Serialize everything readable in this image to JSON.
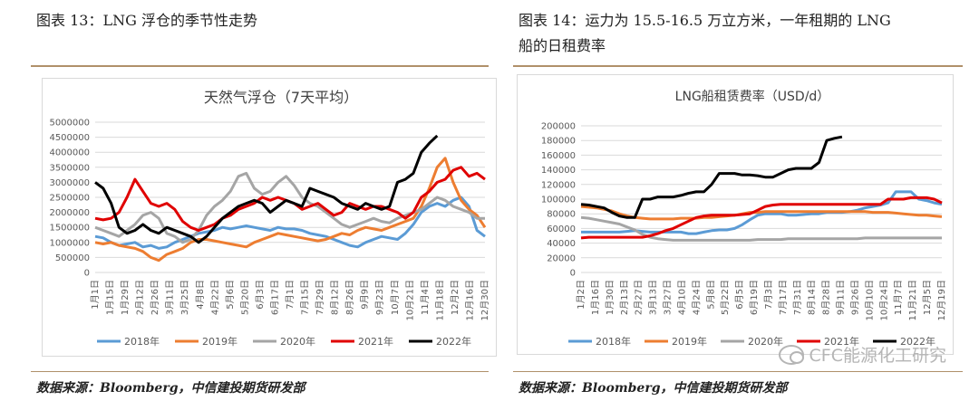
{
  "left_panel": {
    "caption": "图表 13：LNG 浮仓的季节性走势",
    "source": "数据来源：Bloomberg，中信建投期货研发部"
  },
  "right_panel": {
    "caption_line1": "图表  14：运力为 15.5-16.5 万立方米，一年租期的 LNG",
    "caption_line2": "船的日租费率",
    "source": "数据来源：Bloomberg，中信建投期货研发部"
  },
  "watermark": "CFC能源化工研究",
  "colors": {
    "2018": "#5b9bd5",
    "2019": "#ed7d31",
    "2020": "#a5a5a5",
    "2021": "#e00000",
    "2022": "#000000"
  },
  "chart_data": [
    {
      "type": "line",
      "title": "天然气浮仓（7天平均）",
      "ylim": [
        0,
        5000000
      ],
      "yticks": [
        "0",
        "500000",
        "1000000",
        "1500000",
        "2000000",
        "2500000",
        "3000000",
        "3500000",
        "4000000",
        "4500000",
        "5000000"
      ],
      "x_tick_labels": [
        "1月1日",
        "1月15日",
        "1月29日",
        "2月12日",
        "2月26日",
        "3月11日",
        "3月25日",
        "4月8日",
        "4月22日",
        "5月6日",
        "5月20日",
        "6月3日",
        "6月17日",
        "7月1日",
        "7月15日",
        "7月29日",
        "8月12日",
        "8月26日",
        "9月9日",
        "9月23日",
        "10月7日",
        "10月21日",
        "11月4日",
        "11月18日",
        "12月2日",
        "12月16日",
        "12月30日"
      ],
      "grid": true,
      "legend": "bottom",
      "series": [
        {
          "name": "2018年",
          "values": [
            1200000,
            1150000,
            1000000,
            900000,
            950000,
            1000000,
            850000,
            900000,
            800000,
            850000,
            1000000,
            1100000,
            1200000,
            1300000,
            1350000,
            1400000,
            1500000,
            1450000,
            1500000,
            1550000,
            1500000,
            1450000,
            1400000,
            1500000,
            1450000,
            1450000,
            1400000,
            1300000,
            1250000,
            1200000,
            1100000,
            1000000,
            900000,
            850000,
            1000000,
            1100000,
            1200000,
            1150000,
            1100000,
            1300000,
            1600000,
            2000000,
            2200000,
            2300000,
            2200000,
            2400000,
            2500000,
            2200000,
            1400000,
            1200000
          ]
        },
        {
          "name": "2019年",
          "values": [
            1000000,
            950000,
            1000000,
            900000,
            850000,
            800000,
            700000,
            500000,
            400000,
            600000,
            700000,
            800000,
            1000000,
            1100000,
            1100000,
            1050000,
            1000000,
            950000,
            900000,
            850000,
            1000000,
            1100000,
            1200000,
            1300000,
            1250000,
            1200000,
            1150000,
            1100000,
            1050000,
            1100000,
            1200000,
            1300000,
            1250000,
            1400000,
            1500000,
            1450000,
            1400000,
            1500000,
            1600000,
            1700000,
            1800000,
            2200000,
            2800000,
            3500000,
            3800000,
            3000000,
            2400000,
            2100000,
            1900000,
            1500000
          ]
        },
        {
          "name": "2020年",
          "values": [
            1500000,
            1400000,
            1300000,
            1200000,
            1400000,
            1600000,
            1900000,
            2000000,
            1800000,
            1300000,
            1200000,
            1000000,
            1100000,
            1400000,
            1900000,
            2200000,
            2400000,
            2700000,
            3200000,
            3300000,
            2800000,
            2600000,
            2700000,
            3000000,
            3200000,
            2900000,
            2500000,
            2300000,
            2200000,
            2000000,
            1800000,
            1600000,
            1500000,
            1600000,
            1700000,
            1800000,
            1700000,
            1650000,
            1800000,
            1900000,
            2000000,
            2100000,
            2300000,
            2500000,
            2400000,
            2200000,
            2100000,
            2000000,
            1800000,
            1800000
          ]
        },
        {
          "name": "2021年",
          "values": [
            1800000,
            1750000,
            1800000,
            2000000,
            2500000,
            3100000,
            2700000,
            2300000,
            2200000,
            2300000,
            2100000,
            1700000,
            1500000,
            1400000,
            1500000,
            1600000,
            1800000,
            1900000,
            2100000,
            2200000,
            2300000,
            2500000,
            2400000,
            2500000,
            2400000,
            2300000,
            2100000,
            2200000,
            2300000,
            2100000,
            1900000,
            2000000,
            2300000,
            2200000,
            2100000,
            2200000,
            2200000,
            2100000,
            2000000,
            1800000,
            2000000,
            2500000,
            2700000,
            3000000,
            3100000,
            3400000,
            3500000,
            3200000,
            3300000,
            3100000
          ]
        },
        {
          "name": "2022年",
          "values": [
            3000000,
            2800000,
            2300000,
            1500000,
            1300000,
            1400000,
            1600000,
            1400000,
            1300000,
            1500000,
            1400000,
            1300000,
            1200000,
            1000000,
            1200000,
            1500000,
            1800000,
            2000000,
            2200000,
            2300000,
            2400000,
            2300000,
            2000000,
            2200000,
            2400000,
            2300000,
            2200000,
            2800000,
            2700000,
            2600000,
            2500000,
            2300000,
            2200000,
            2100000,
            2300000,
            2200000,
            2100000,
            2200000,
            3000000,
            3100000,
            3300000,
            4000000,
            4300000,
            4550000
          ]
        }
      ]
    },
    {
      "type": "line",
      "title": "LNG船租赁费率（USD/d）",
      "ylim": [
        0,
        200000
      ],
      "yticks": [
        "0",
        "20000",
        "40000",
        "60000",
        "80000",
        "100000",
        "120000",
        "140000",
        "160000",
        "180000",
        "200000"
      ],
      "x_tick_labels": [
        "1月2日",
        "1月16日",
        "1月30日",
        "2月13日",
        "2月27日",
        "3月13日",
        "3月27日",
        "4月10日",
        "4月24日",
        "5月8日",
        "5月22日",
        "6月5日",
        "6月19日",
        "7月3日",
        "7月17日",
        "7月31日",
        "8月14日",
        "8月28日",
        "9月11日",
        "9月26日",
        "10月10日",
        "10月24日",
        "11月7日",
        "11月21日",
        "12月5日",
        "12月19日"
      ],
      "grid": true,
      "legend": "bottom",
      "series": [
        {
          "name": "2018年",
          "values": [
            55000,
            55000,
            55000,
            55000,
            55000,
            55000,
            56000,
            57000,
            56000,
            55000,
            55000,
            55000,
            55000,
            55000,
            53000,
            53000,
            55000,
            57000,
            58000,
            58000,
            60000,
            65000,
            72000,
            78000,
            80000,
            80000,
            80000,
            78000,
            78000,
            79000,
            80000,
            80000,
            82000,
            82000,
            82000,
            83000,
            85000,
            88000,
            90000,
            92000,
            95000,
            110000,
            110000,
            110000,
            100000,
            98000,
            95000,
            93000
          ]
        },
        {
          "name": "2019年",
          "values": [
            90000,
            89000,
            88000,
            86000,
            84000,
            80000,
            77000,
            75000,
            74000,
            73000,
            73000,
            73000,
            73000,
            74000,
            74000,
            74000,
            75000,
            75000,
            76000,
            77000,
            78000,
            80000,
            82000,
            82000,
            83000,
            83000,
            83000,
            83000,
            83000,
            83000,
            83000,
            83000,
            83000,
            83000,
            83000,
            83000,
            83000,
            83000,
            82000,
            82000,
            82000,
            81000,
            80000,
            79000,
            78000,
            78000,
            77000,
            76000
          ]
        },
        {
          "name": "2020年",
          "values": [
            75000,
            74000,
            72000,
            70000,
            68000,
            66000,
            62000,
            58000,
            52000,
            48000,
            46000,
            45000,
            44000,
            44000,
            44000,
            44000,
            44000,
            44000,
            44000,
            44000,
            44000,
            44000,
            44000,
            45000,
            45000,
            45000,
            45000,
            46000,
            46000,
            46000,
            46000,
            46000,
            46000,
            46000,
            46000,
            46000,
            46000,
            47000,
            47000,
            47000,
            47000,
            47000,
            47000,
            47000,
            47000,
            47000,
            47000,
            47000
          ]
        },
        {
          "name": "2021年",
          "values": [
            47000,
            48000,
            48000,
            48000,
            48000,
            48000,
            48000,
            48000,
            48000,
            50000,
            53000,
            57000,
            60000,
            65000,
            70000,
            75000,
            77000,
            78000,
            78000,
            78000,
            78000,
            79000,
            80000,
            85000,
            90000,
            92000,
            93000,
            93000,
            93000,
            93000,
            93000,
            93000,
            93000,
            93000,
            93000,
            93000,
            93000,
            93000,
            93000,
            93000,
            100000,
            100000,
            100000,
            102000,
            102000,
            102000,
            100000,
            95000
          ]
        },
        {
          "name": "2022年",
          "values": [
            93000,
            92000,
            90000,
            88000,
            82000,
            77000,
            75000,
            75000,
            100000,
            100000,
            103000,
            103000,
            103000,
            105000,
            108000,
            110000,
            110000,
            120000,
            135000,
            135000,
            135000,
            133000,
            133000,
            132000,
            130000,
            130000,
            135000,
            140000,
            142000,
            142000,
            142000,
            150000,
            180000,
            183000,
            185000
          ]
        }
      ]
    }
  ]
}
